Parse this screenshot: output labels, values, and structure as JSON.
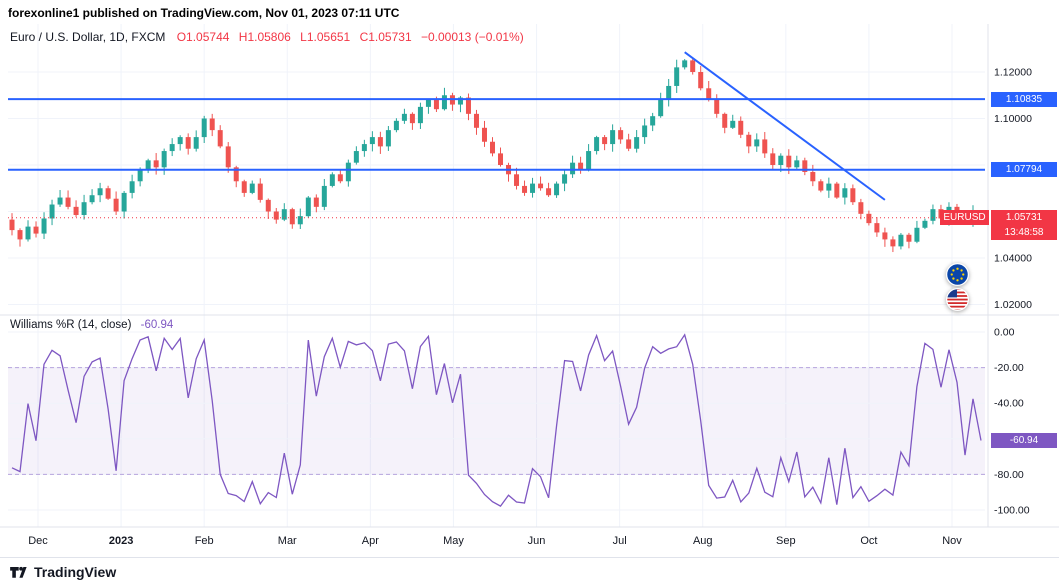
{
  "attribution": {
    "text": "forexonline1 published on TradingView.com, Nov 01, 2023 07:11 UTC"
  },
  "header": {
    "symbol": "Euro / U.S. Dollar, 1D, FXCM",
    "ohlc": {
      "o": "O1.05744",
      "h": "H1.05806",
      "l": "L1.05651",
      "c": "C1.05731",
      "change": "−0.00013 (−0.01%)"
    }
  },
  "footer": {
    "brand": "TradingView"
  },
  "icons": {
    "logo": "tradingview-logo-icon",
    "eur": "eur-flag-icon",
    "usd": "usd-flag-icon"
  },
  "chart_data": [
    {
      "type": "candlestick",
      "title": "Euro / U.S. Dollar",
      "symbol": "EURUSD",
      "timeframe": "1D",
      "exchange": "FXCM",
      "x_labels": [
        "Dec",
        "2023",
        "Feb",
        "Mar",
        "Apr",
        "May",
        "Jun",
        "Jul",
        "Aug",
        "Sep",
        "Oct",
        "Nov"
      ],
      "closes": [
        1.052,
        1.048,
        1.0535,
        1.0505,
        1.057,
        1.063,
        1.066,
        1.062,
        1.0585,
        1.064,
        1.067,
        1.07,
        1.0655,
        1.06,
        1.068,
        1.073,
        1.078,
        1.082,
        1.079,
        1.086,
        1.089,
        1.092,
        1.087,
        1.092,
        1.1,
        1.095,
        1.088,
        1.079,
        1.073,
        1.068,
        1.072,
        1.065,
        1.06,
        1.0565,
        1.061,
        1.0545,
        1.058,
        1.066,
        1.062,
        1.071,
        1.076,
        1.073,
        1.081,
        1.086,
        1.089,
        1.092,
        1.088,
        1.095,
        1.099,
        1.102,
        1.098,
        1.105,
        1.108,
        1.104,
        1.11,
        1.106,
        1.109,
        1.102,
        1.096,
        1.09,
        1.085,
        1.08,
        1.076,
        1.071,
        1.068,
        1.072,
        1.07,
        1.067,
        1.072,
        1.076,
        1.081,
        1.078,
        1.086,
        1.092,
        1.089,
        1.095,
        1.091,
        1.087,
        1.092,
        1.097,
        1.101,
        1.108,
        1.114,
        1.122,
        1.125,
        1.12,
        1.113,
        1.108,
        1.102,
        1.096,
        1.099,
        1.093,
        1.088,
        1.091,
        1.085,
        1.08,
        1.084,
        1.079,
        1.082,
        1.077,
        1.073,
        1.069,
        1.072,
        1.066,
        1.07,
        1.064,
        1.059,
        1.055,
        1.051,
        1.048,
        1.045,
        1.05,
        1.047,
        1.053,
        1.056,
        1.061,
        1.057,
        1.062,
        1.059,
        1.056,
        1.06,
        1.0573
      ],
      "y_grid": [
        1.12,
        1.1,
        1.08,
        1.06,
        1.04,
        1.02
      ],
      "y_tick_labels": [
        {
          "v": 1.12,
          "t": "1.12000"
        },
        {
          "v": 1.1,
          "t": "1.10000"
        },
        {
          "v": 1.04,
          "t": "1.04000"
        },
        {
          "v": 1.02,
          "t": "1.02000"
        }
      ],
      "levels": [
        {
          "value": 1.10835,
          "label": "1.10835",
          "color": "#2962FF"
        },
        {
          "value": 1.07794,
          "label": "1.07794",
          "color": "#2962FF"
        }
      ],
      "trendline": {
        "from_index": 84,
        "from_price": 1.1285,
        "to_index": 109,
        "to_price": 1.065,
        "color": "#2962FF"
      },
      "last": {
        "symbol": "EURUSD",
        "price": "1.05731",
        "countdown": "13:48:58",
        "value": 1.05731,
        "color": "#F23645"
      },
      "colors": {
        "up": "#26a69a",
        "down": "#ef5350"
      }
    },
    {
      "type": "line",
      "indicator": "Williams %R",
      "title": "Williams %R (14, close)",
      "period": 14,
      "source": "close",
      "value": -60.94,
      "value_label": "-60.94",
      "color": "#7E57C2",
      "bands": {
        "upper": -20,
        "lower": -80
      },
      "ylim": [
        0,
        -100
      ],
      "y_grid": [
        0,
        -20,
        -40,
        -60,
        -80,
        -100
      ],
      "y_tick_labels": [
        {
          "v": 0,
          "t": "0.00"
        },
        {
          "v": -20,
          "t": "-20.00"
        },
        {
          "v": -40,
          "t": "-40.00"
        },
        {
          "v": -80,
          "t": "-80.00"
        },
        {
          "v": -100,
          "t": "-100.00"
        }
      ]
    }
  ]
}
